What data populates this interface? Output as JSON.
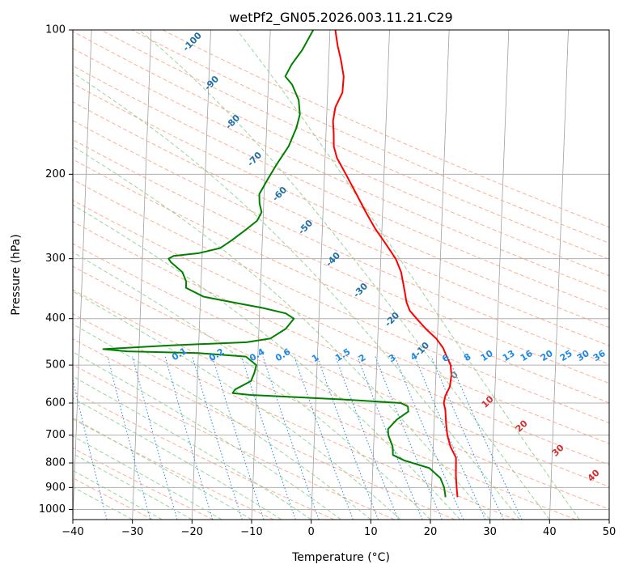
{
  "chart_data": {
    "type": "line",
    "title": "wetPf2_GN05.2026.003.11.21.C29",
    "xlabel": "Temperature (°C)",
    "ylabel": "Pressure (hPa)",
    "xlim": [
      -40,
      50
    ],
    "ylim": [
      1050,
      100
    ],
    "y_scale": "log",
    "x_ticks": [
      -40,
      -30,
      -20,
      -10,
      0,
      10,
      20,
      30,
      40,
      50
    ],
    "y_ticks": [
      100,
      200,
      300,
      400,
      500,
      600,
      700,
      800,
      900,
      1000
    ],
    "grid": true,
    "skew": "skew-T log-p diagram",
    "colors": {
      "temperature": "#ff0000",
      "dewpoint": "#008000",
      "isotherm": "#a0a0a0",
      "dry_adiabat": "#ff9977",
      "moist_adiabat": "#88cc88",
      "mixing_ratio": "#1e88e5",
      "wet_bulb_label": "#1f6fa8",
      "isotherm_label": "#d32f2f",
      "zero_label": "#808080",
      "mixing_label": "#1e88e5"
    },
    "series": [
      {
        "kind": "temperature",
        "points": [
          {
            "p": 943,
            "t": 24.4
          },
          {
            "p": 900,
            "t": 24.2
          },
          {
            "p": 850,
            "t": 24.0
          },
          {
            "p": 780,
            "t": 23.9
          },
          {
            "p": 740,
            "t": 22.9
          },
          {
            "p": 700,
            "t": 22.3
          },
          {
            "p": 660,
            "t": 22.0
          },
          {
            "p": 620,
            "t": 21.8
          },
          {
            "p": 600,
            "t": 21.5
          },
          {
            "p": 580,
            "t": 21.7
          },
          {
            "p": 555,
            "t": 22.4
          },
          {
            "p": 525,
            "t": 22.6
          },
          {
            "p": 500,
            "t": 22.4
          },
          {
            "p": 480,
            "t": 21.7
          },
          {
            "p": 460,
            "t": 21.0
          },
          {
            "p": 440,
            "t": 19.8
          },
          {
            "p": 420,
            "t": 18.0
          },
          {
            "p": 400,
            "t": 16.4
          },
          {
            "p": 385,
            "t": 15.2
          },
          {
            "p": 370,
            "t": 14.6
          },
          {
            "p": 350,
            "t": 14.2
          },
          {
            "p": 320,
            "t": 13.5
          },
          {
            "p": 300,
            "t": 12.5
          },
          {
            "p": 280,
            "t": 10.8
          },
          {
            "p": 260,
            "t": 8.9
          },
          {
            "p": 240,
            "t": 7.2
          },
          {
            "p": 220,
            "t": 5.5
          },
          {
            "p": 200,
            "t": 3.6
          },
          {
            "p": 185,
            "t": 2.0
          },
          {
            "p": 175,
            "t": 1.4
          },
          {
            "p": 165,
            "t": 1.3
          },
          {
            "p": 155,
            "t": 1.1
          },
          {
            "p": 145,
            "t": 1.4
          },
          {
            "p": 135,
            "t": 2.5
          },
          {
            "p": 125,
            "t": 2.6
          },
          {
            "p": 115,
            "t": 2.0
          },
          {
            "p": 108,
            "t": 1.4
          },
          {
            "p": 100,
            "t": 0.9
          }
        ]
      },
      {
        "kind": "dewpoint",
        "points": [
          {
            "p": 943,
            "t": 22.4
          },
          {
            "p": 900,
            "t": 22.1
          },
          {
            "p": 860,
            "t": 21.4
          },
          {
            "p": 820,
            "t": 19.5
          },
          {
            "p": 790,
            "t": 15.2
          },
          {
            "p": 770,
            "t": 13.3
          },
          {
            "p": 740,
            "t": 13.2
          },
          {
            "p": 700,
            "t": 12.4
          },
          {
            "p": 680,
            "t": 12.3
          },
          {
            "p": 650,
            "t": 13.7
          },
          {
            "p": 625,
            "t": 15.6
          },
          {
            "p": 610,
            "t": 15.5
          },
          {
            "p": 600,
            "t": 14.3
          },
          {
            "p": 590,
            "t": 5.0
          },
          {
            "p": 582,
            "t": -5.0
          },
          {
            "p": 577,
            "t": -11.0
          },
          {
            "p": 572,
            "t": -14.0
          },
          {
            "p": 562,
            "t": -13.6
          },
          {
            "p": 540,
            "t": -11.0
          },
          {
            "p": 520,
            "t": -10.5
          },
          {
            "p": 500,
            "t": -10.2
          },
          {
            "p": 480,
            "t": -12.0
          },
          {
            "p": 472,
            "t": -20.0
          },
          {
            "p": 468,
            "t": -32.0
          },
          {
            "p": 463,
            "t": -36.0
          },
          {
            "p": 455,
            "t": -25.0
          },
          {
            "p": 448,
            "t": -12.0
          },
          {
            "p": 440,
            "t": -8.0
          },
          {
            "p": 420,
            "t": -5.5
          },
          {
            "p": 400,
            "t": -4.2
          },
          {
            "p": 390,
            "t": -5.6
          },
          {
            "p": 380,
            "t": -9.5
          },
          {
            "p": 370,
            "t": -14.5
          },
          {
            "p": 360,
            "t": -19.5
          },
          {
            "p": 345,
            "t": -22.5
          },
          {
            "p": 335,
            "t": -22.5
          },
          {
            "p": 320,
            "t": -23.2
          },
          {
            "p": 305,
            "t": -25.2
          },
          {
            "p": 300,
            "t": -25.6
          },
          {
            "p": 296,
            "t": -24.8
          },
          {
            "p": 292,
            "t": -20.5
          },
          {
            "p": 285,
            "t": -17.0
          },
          {
            "p": 275,
            "t": -15.2
          },
          {
            "p": 262,
            "t": -13.0
          },
          {
            "p": 250,
            "t": -11.0
          },
          {
            "p": 240,
            "t": -10.3
          },
          {
            "p": 230,
            "t": -10.7
          },
          {
            "p": 220,
            "t": -10.8
          },
          {
            "p": 205,
            "t": -9.5
          },
          {
            "p": 190,
            "t": -8.0
          },
          {
            "p": 175,
            "t": -6.2
          },
          {
            "p": 160,
            "t": -5.0
          },
          {
            "p": 150,
            "t": -4.5
          },
          {
            "p": 140,
            "t": -4.8
          },
          {
            "p": 130,
            "t": -6.0
          },
          {
            "p": 125,
            "t": -7.2
          },
          {
            "p": 118,
            "t": -6.2
          },
          {
            "p": 110,
            "t": -4.5
          },
          {
            "p": 100,
            "t": -2.8
          }
        ]
      }
    ],
    "wet_bulb_labels": [
      "-100",
      "-90",
      "-80",
      "-70",
      "-60",
      "-50",
      "-40",
      "-30",
      "-20",
      "-10",
      "0"
    ],
    "isotherm_labels": [
      "10",
      "20",
      "30",
      "40"
    ],
    "mixing_ratio_labels": [
      "0.1",
      "0.2",
      "0.4",
      "0.6",
      "1",
      "1.5",
      "2",
      "3",
      "4",
      "6",
      "8",
      "10",
      "13",
      "16",
      "20",
      "25",
      "30",
      "36"
    ]
  }
}
